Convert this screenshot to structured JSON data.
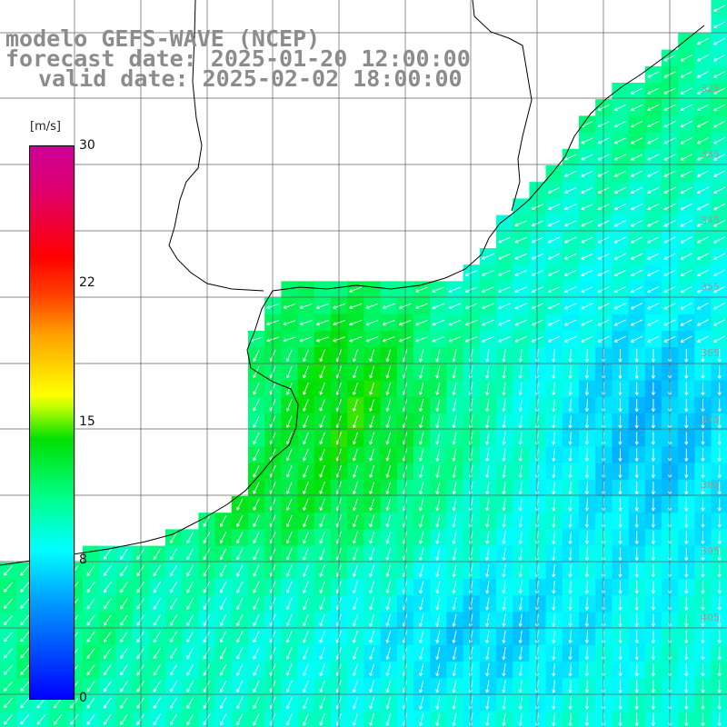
{
  "title": {
    "model": "modelo GEFS-WAVE (NCEP)",
    "forecast_date": "forecast date: 2025-01-20 12:00:00",
    "valid_date": "valid date: 2025-02-02 18:00:00"
  },
  "colorbar": {
    "unit": "[m/s]",
    "min": 0,
    "max": 30,
    "ticks": [
      "30",
      "22",
      "15",
      "8",
      "0"
    ],
    "colors": [
      "#0000ff",
      "#00a0ff",
      "#00ffff",
      "#00ff90",
      "#00e000",
      "#ffff00",
      "#ffa000",
      "#ff0000",
      "#cc0099"
    ]
  },
  "grid": {
    "right_labels": [
      "325",
      "335",
      "345",
      "355",
      "365",
      "375",
      "385",
      "395",
      "405"
    ],
    "bottom_labels": [
      "",
      "",
      "",
      "",
      "",
      "",
      "",
      "",
      "",
      "",
      ""
    ]
  },
  "field": {
    "quantity": "wind speed and direction",
    "land_color": "#ffffff",
    "arrow_color": "#ffffff"
  }
}
